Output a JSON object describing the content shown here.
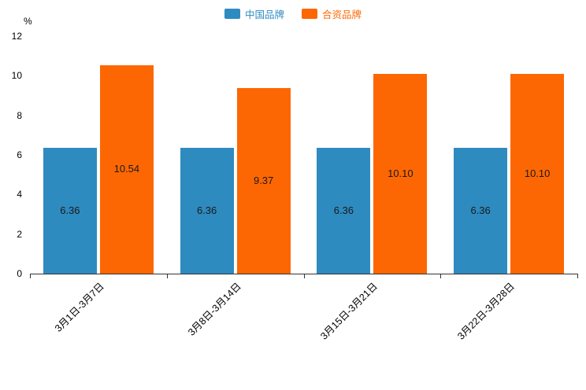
{
  "chart_data": {
    "type": "bar",
    "title": "",
    "xlabel": "",
    "ylabel": "%",
    "ylim": [
      0,
      12
    ],
    "ytick_interval": 2,
    "grid": false,
    "legend_position": "top",
    "categories": [
      "3月1日-3月7日",
      "3月8日-3月14日",
      "3月15日-3月21日",
      "3月22日-3月28日"
    ],
    "series": [
      {
        "name": "中国品牌",
        "color": "#2e8bc0",
        "values": [
          6.36,
          6.36,
          6.36,
          6.36
        ]
      },
      {
        "name": "合资品牌",
        "color": "#fd6703",
        "values": [
          10.54,
          9.37,
          10.1,
          10.1
        ]
      }
    ]
  }
}
